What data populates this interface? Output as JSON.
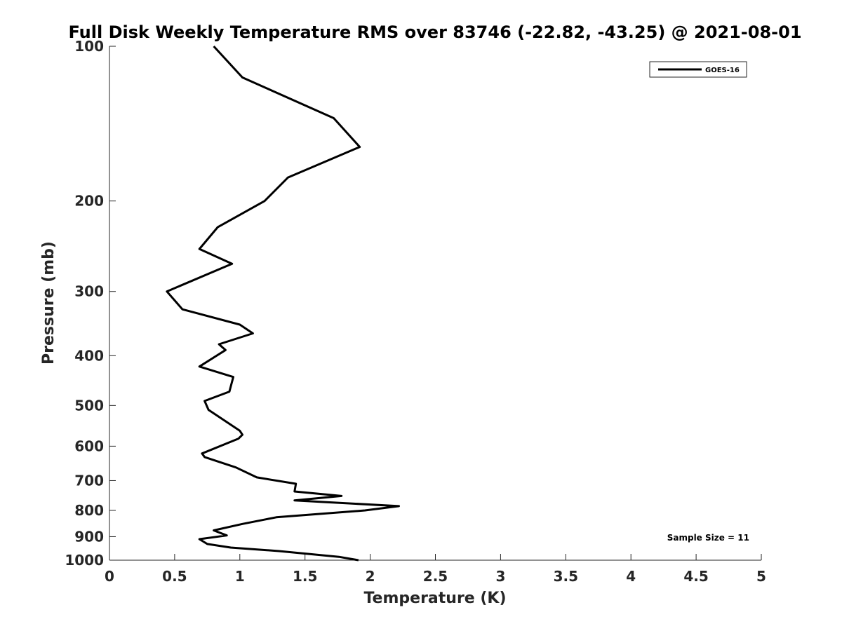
{
  "chart_data": {
    "type": "line",
    "title": "Full Disk Weekly Temperature RMS over 83746 (-22.82, -43.25) @ 2021-08-01",
    "xlabel": "Temperature (K)",
    "ylabel": "Pressure (mb)",
    "xlim": [
      0,
      5
    ],
    "ylim": [
      100,
      1000
    ],
    "y_scale": "log",
    "y_reversed": true,
    "x_ticks": [
      "0",
      "0.5",
      "1",
      "1.5",
      "2",
      "2.5",
      "3",
      "3.5",
      "4",
      "4.5",
      "5"
    ],
    "y_ticks": [
      "100",
      "200",
      "300",
      "400",
      "500",
      "600",
      "700",
      "800",
      "900",
      "1000"
    ],
    "grid": false,
    "legend_position": "top-right",
    "series": [
      {
        "name": "GOES-16",
        "color": "#000000",
        "x": [
          0.8,
          1.02,
          1.72,
          1.92,
          1.37,
          1.19,
          0.83,
          0.69,
          0.94,
          0.44,
          0.56,
          1.0,
          1.1,
          0.84,
          0.89,
          0.69,
          0.95,
          0.92,
          0.73,
          0.76,
          1.0,
          1.02,
          0.99,
          0.71,
          0.73,
          0.97,
          1.13,
          1.43,
          1.42,
          1.78,
          1.42,
          2.22,
          1.96,
          1.28,
          1.02,
          0.8,
          0.9,
          0.69,
          0.75,
          0.93,
          1.3,
          1.76,
          1.91
        ],
        "y": [
          100,
          115,
          138,
          157,
          180,
          200,
          225,
          248,
          265,
          300,
          325,
          348,
          362,
          380,
          390,
          420,
          440,
          470,
          490,
          510,
          560,
          570,
          580,
          620,
          630,
          660,
          690,
          710,
          735,
          750,
          765,
          785,
          800,
          825,
          850,
          875,
          895,
          910,
          930,
          945,
          960,
          985,
          1000
        ]
      }
    ],
    "annotations": [
      "Sample Size = 11"
    ]
  }
}
